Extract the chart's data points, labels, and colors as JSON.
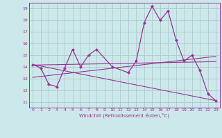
{
  "background_color": "#cce8ea",
  "grid_color": "#aacccc",
  "line_color": "#993399",
  "marker_color": "#993399",
  "xlabel": "Windchill (Refroidissement éolien,°C)",
  "xlim": [
    -0.5,
    23.5
  ],
  "ylim": [
    10.5,
    19.5
  ],
  "xticks": [
    0,
    1,
    2,
    3,
    4,
    5,
    6,
    7,
    8,
    9,
    10,
    11,
    12,
    13,
    14,
    15,
    16,
    17,
    18,
    19,
    20,
    21,
    22,
    23
  ],
  "yticks": [
    11,
    12,
    13,
    14,
    15,
    16,
    17,
    18,
    19
  ],
  "main_series": {
    "x": [
      0,
      1,
      2,
      3,
      4,
      5,
      6,
      7,
      8,
      10,
      12,
      13,
      14,
      15,
      16,
      17,
      18,
      19,
      20,
      21,
      22,
      23
    ],
    "y": [
      14.2,
      13.9,
      12.5,
      12.3,
      13.9,
      15.5,
      14.0,
      15.0,
      15.5,
      14.0,
      13.5,
      14.5,
      17.8,
      19.2,
      18.0,
      18.8,
      16.3,
      14.5,
      15.0,
      13.7,
      11.7,
      11.1
    ]
  },
  "trend_lines": [
    {
      "x": [
        0,
        23
      ],
      "y": [
        14.2,
        11.1
      ]
    },
    {
      "x": [
        0,
        23
      ],
      "y": [
        14.15,
        14.45
      ]
    },
    {
      "x": [
        0,
        23
      ],
      "y": [
        13.1,
        14.9
      ]
    }
  ]
}
